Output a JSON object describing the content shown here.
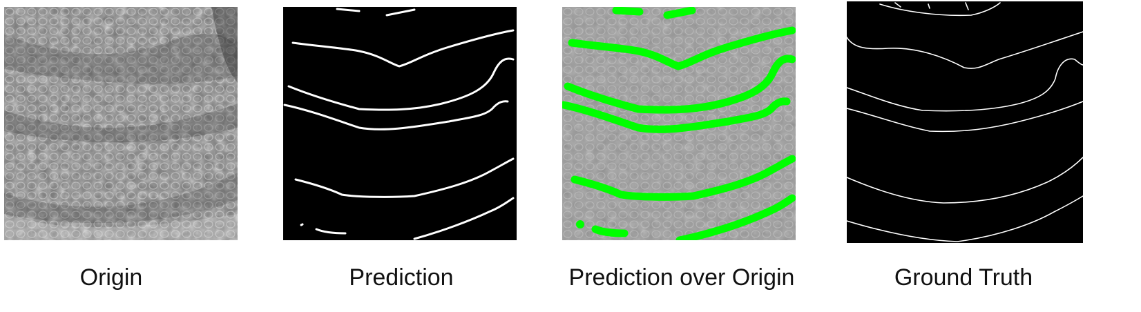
{
  "figure": {
    "panels": [
      {
        "id": "origin",
        "caption": "Origin"
      },
      {
        "id": "prediction",
        "caption": "Prediction"
      },
      {
        "id": "overlay",
        "caption": "Prediction over Origin"
      },
      {
        "id": "ground_truth",
        "caption": "Ground Truth"
      }
    ],
    "colors": {
      "tissue_dark": "#5a5a5a",
      "tissue_light": "#b8b8b8",
      "mask_background": "#000000",
      "prediction_line": "#ffffff",
      "overlay_line": "#00ff00",
      "ground_truth_line": "#ffffff"
    }
  }
}
